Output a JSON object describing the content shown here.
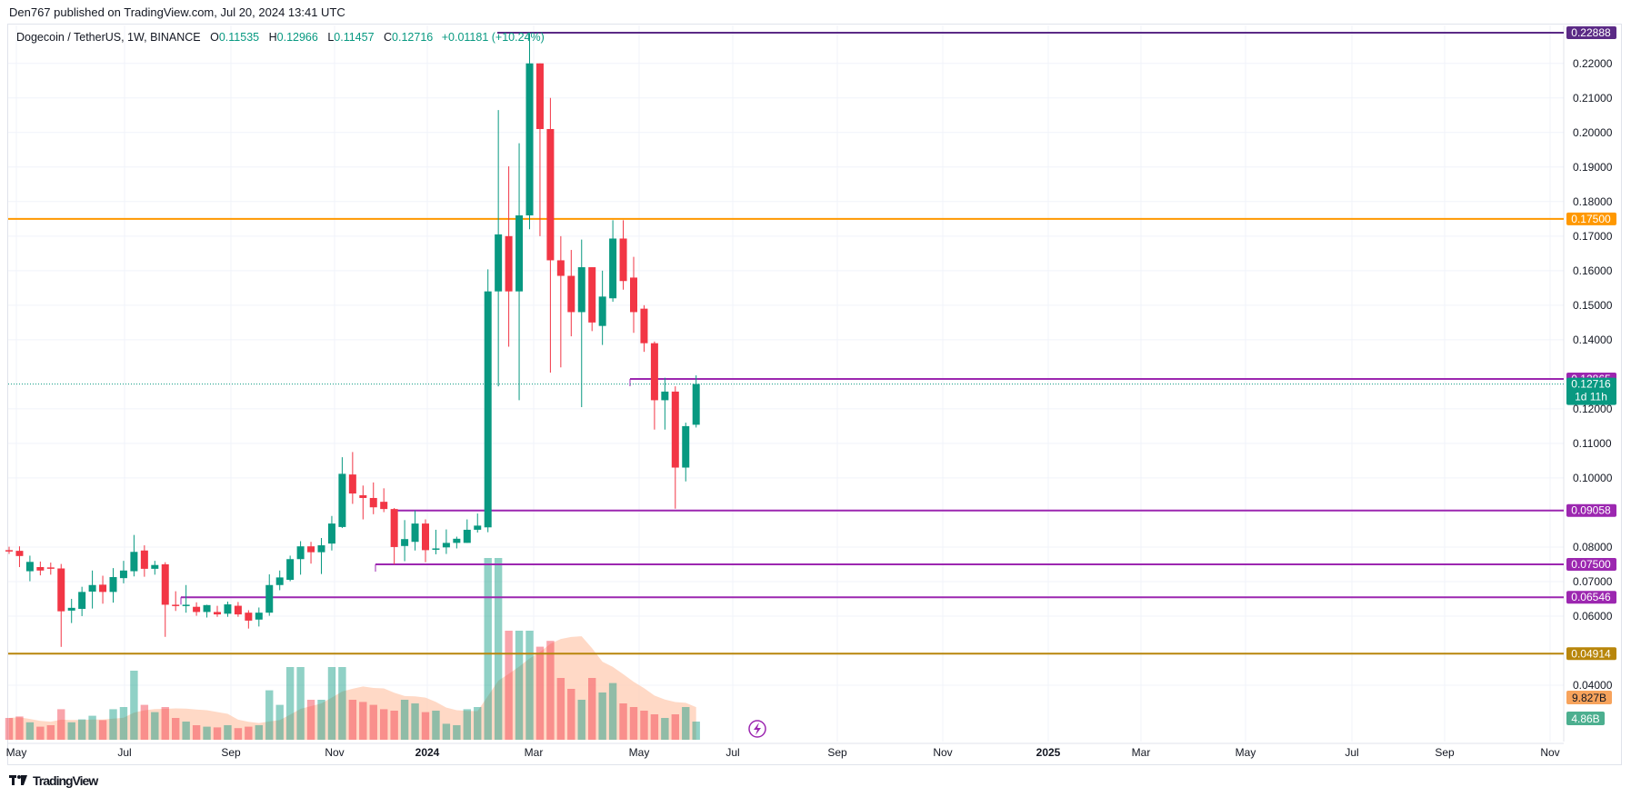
{
  "header": {
    "publisher": "Den767 published on TradingView.com, Jul 20, 2024 13:41 UTC"
  },
  "legend": {
    "symbol": "Dogecoin / TetherUS, 1W, BINANCE",
    "o_label": "O",
    "o": "0.11535",
    "h_label": "H",
    "h": "0.12966",
    "l_label": "L",
    "l": "0.11457",
    "c_label": "C",
    "c": "0.12716",
    "change": "+0.01181 (+10.24%)"
  },
  "footer": {
    "brand": "TradingView"
  },
  "colors": {
    "up": "#089981",
    "down": "#f23645",
    "level": "#9c27b0",
    "orange": "#ff9800",
    "gold": "#b8860b"
  },
  "chart_data": {
    "type": "candlestick",
    "timeframe": "1W",
    "x_ticks": [
      "May",
      "Jul",
      "Sep",
      "Nov",
      "2024",
      "Mar",
      "May",
      "Jul",
      "Sep",
      "Nov",
      "2025",
      "Mar",
      "May",
      "Jul",
      "Sep",
      "Nov"
    ],
    "y_ticks": [
      "0.22000",
      "0.21000",
      "0.20000",
      "0.19000",
      "0.18000",
      "0.17000",
      "0.16000",
      "0.15000",
      "0.14000",
      "0.12000",
      "0.11000",
      "0.10000",
      "0.08000",
      "0.07000",
      "0.06000",
      "0.04000"
    ],
    "y_range": [
      0.0325,
      0.2311
    ],
    "candles": [
      {
        "o": 0.0791,
        "h": 0.0801,
        "l": 0.078,
        "c": 0.079
      },
      {
        "o": 0.0789,
        "h": 0.0802,
        "l": 0.0742,
        "c": 0.0774
      },
      {
        "o": 0.073,
        "h": 0.0775,
        "l": 0.0701,
        "c": 0.0757
      },
      {
        "o": 0.0742,
        "h": 0.0758,
        "l": 0.0718,
        "c": 0.0732
      },
      {
        "o": 0.0741,
        "h": 0.0755,
        "l": 0.072,
        "c": 0.0738
      },
      {
        "o": 0.0738,
        "h": 0.0751,
        "l": 0.0511,
        "c": 0.0614
      },
      {
        "o": 0.0616,
        "h": 0.065,
        "l": 0.058,
        "c": 0.0624
      },
      {
        "o": 0.0621,
        "h": 0.0685,
        "l": 0.06,
        "c": 0.067
      },
      {
        "o": 0.0671,
        "h": 0.0732,
        "l": 0.0622,
        "c": 0.069
      },
      {
        "o": 0.0691,
        "h": 0.0717,
        "l": 0.0636,
        "c": 0.067
      },
      {
        "o": 0.067,
        "h": 0.0739,
        "l": 0.0639,
        "c": 0.0713
      },
      {
        "o": 0.071,
        "h": 0.076,
        "l": 0.0695,
        "c": 0.0732
      },
      {
        "o": 0.073,
        "h": 0.0835,
        "l": 0.0715,
        "c": 0.0786
      },
      {
        "o": 0.079,
        "h": 0.0805,
        "l": 0.0714,
        "c": 0.0737
      },
      {
        "o": 0.0737,
        "h": 0.076,
        "l": 0.072,
        "c": 0.0748
      },
      {
        "o": 0.075,
        "h": 0.0756,
        "l": 0.054,
        "c": 0.0633
      },
      {
        "o": 0.0633,
        "h": 0.0672,
        "l": 0.0615,
        "c": 0.0632
      },
      {
        "o": 0.0633,
        "h": 0.069,
        "l": 0.061,
        "c": 0.0633
      },
      {
        "o": 0.0627,
        "h": 0.064,
        "l": 0.0601,
        "c": 0.0612
      },
      {
        "o": 0.0612,
        "h": 0.0633,
        "l": 0.0596,
        "c": 0.0632
      },
      {
        "o": 0.0612,
        "h": 0.063,
        "l": 0.0598,
        "c": 0.0605
      },
      {
        "o": 0.0607,
        "h": 0.0642,
        "l": 0.0598,
        "c": 0.0634
      },
      {
        "o": 0.063,
        "h": 0.0641,
        "l": 0.0598,
        "c": 0.0605
      },
      {
        "o": 0.061,
        "h": 0.0617,
        "l": 0.0564,
        "c": 0.0587
      },
      {
        "o": 0.059,
        "h": 0.0625,
        "l": 0.057,
        "c": 0.061
      },
      {
        "o": 0.061,
        "h": 0.0721,
        "l": 0.0601,
        "c": 0.069
      },
      {
        "o": 0.069,
        "h": 0.0732,
        "l": 0.0675,
        "c": 0.0712
      },
      {
        "o": 0.0705,
        "h": 0.0775,
        "l": 0.0701,
        "c": 0.0765
      },
      {
        "o": 0.0765,
        "h": 0.0817,
        "l": 0.072,
        "c": 0.0802
      },
      {
        "o": 0.0802,
        "h": 0.0815,
        "l": 0.0752,
        "c": 0.0785
      },
      {
        "o": 0.0785,
        "h": 0.0826,
        "l": 0.0722,
        "c": 0.0805
      },
      {
        "o": 0.081,
        "h": 0.089,
        "l": 0.079,
        "c": 0.0868
      },
      {
        "o": 0.0858,
        "h": 0.106,
        "l": 0.0855,
        "c": 0.1012
      },
      {
        "o": 0.101,
        "h": 0.1075,
        "l": 0.0925,
        "c": 0.0955
      },
      {
        "o": 0.095,
        "h": 0.0978,
        "l": 0.088,
        "c": 0.0942
      },
      {
        "o": 0.0942,
        "h": 0.0987,
        "l": 0.0895,
        "c": 0.0915
      },
      {
        "o": 0.0931,
        "h": 0.097,
        "l": 0.0901,
        "c": 0.091
      },
      {
        "o": 0.091,
        "h": 0.0913,
        "l": 0.075,
        "c": 0.08
      },
      {
        "o": 0.0803,
        "h": 0.0878,
        "l": 0.0759,
        "c": 0.0823
      },
      {
        "o": 0.0815,
        "h": 0.0906,
        "l": 0.079,
        "c": 0.0868
      },
      {
        "o": 0.0868,
        "h": 0.088,
        "l": 0.0756,
        "c": 0.0791
      },
      {
        "o": 0.0793,
        "h": 0.085,
        "l": 0.0779,
        "c": 0.0796
      },
      {
        "o": 0.0799,
        "h": 0.0851,
        "l": 0.078,
        "c": 0.0812
      },
      {
        "o": 0.0812,
        "h": 0.083,
        "l": 0.0796,
        "c": 0.0824
      },
      {
        "o": 0.0812,
        "h": 0.088,
        "l": 0.0812,
        "c": 0.085
      },
      {
        "o": 0.085,
        "h": 0.0897,
        "l": 0.0842,
        "c": 0.0862
      },
      {
        "o": 0.0857,
        "h": 0.1604,
        "l": 0.0843,
        "c": 0.154
      },
      {
        "o": 0.154,
        "h": 0.2065,
        "l": 0.1265,
        "c": 0.1705
      },
      {
        "o": 0.17,
        "h": 0.1902,
        "l": 0.138,
        "c": 0.154
      },
      {
        "o": 0.154,
        "h": 0.1969,
        "l": 0.1225,
        "c": 0.176
      },
      {
        "o": 0.176,
        "h": 0.2289,
        "l": 0.172,
        "c": 0.22
      },
      {
        "o": 0.22,
        "h": 0.22,
        "l": 0.17,
        "c": 0.201
      },
      {
        "o": 0.201,
        "h": 0.21,
        "l": 0.1305,
        "c": 0.163
      },
      {
        "o": 0.163,
        "h": 0.17,
        "l": 0.132,
        "c": 0.1585
      },
      {
        "o": 0.1585,
        "h": 0.166,
        "l": 0.141,
        "c": 0.148
      },
      {
        "o": 0.148,
        "h": 0.169,
        "l": 0.1205,
        "c": 0.161
      },
      {
        "o": 0.161,
        "h": 0.161,
        "l": 0.1425,
        "c": 0.145
      },
      {
        "o": 0.144,
        "h": 0.16,
        "l": 0.1385,
        "c": 0.1525
      },
      {
        "o": 0.152,
        "h": 0.1746,
        "l": 0.151,
        "c": 0.1693
      },
      {
        "o": 0.1693,
        "h": 0.1746,
        "l": 0.1545,
        "c": 0.157
      },
      {
        "o": 0.158,
        "h": 0.164,
        "l": 0.142,
        "c": 0.148
      },
      {
        "o": 0.149,
        "h": 0.15,
        "l": 0.1365,
        "c": 0.139
      },
      {
        "o": 0.139,
        "h": 0.1395,
        "l": 0.114,
        "c": 0.1225
      },
      {
        "o": 0.1225,
        "h": 0.129,
        "l": 0.114,
        "c": 0.125
      },
      {
        "o": 0.125,
        "h": 0.1265,
        "l": 0.0911,
        "c": 0.103
      },
      {
        "o": 0.103,
        "h": 0.116,
        "l": 0.099,
        "c": 0.115
      },
      {
        "o": 0.1154,
        "h": 0.1297,
        "l": 0.1146,
        "c": 0.1272
      }
    ],
    "volume": [
      0.3,
      0.32,
      0.24,
      0.18,
      0.2,
      0.42,
      0.24,
      0.28,
      0.33,
      0.27,
      0.42,
      0.45,
      0.95,
      0.48,
      0.38,
      0.45,
      0.3,
      0.25,
      0.2,
      0.18,
      0.17,
      0.2,
      0.16,
      0.18,
      0.2,
      0.68,
      0.48,
      1.0,
      1.0,
      0.55,
      0.55,
      1.0,
      1.0,
      0.55,
      0.52,
      0.48,
      0.42,
      0.4,
      0.55,
      0.5,
      0.38,
      0.4,
      0.22,
      0.2,
      0.42,
      0.45,
      2.5,
      2.5,
      1.5,
      1.5,
      1.5,
      1.28,
      1.36,
      0.85,
      0.7,
      0.55,
      0.85,
      0.65,
      0.78,
      0.5,
      0.45,
      0.4,
      0.35,
      0.3,
      0.35,
      0.45,
      0.25
    ],
    "volume_labels": [
      "9.827B",
      "4.86B"
    ],
    "levels": [
      {
        "value": 0.22888,
        "label": "0.22888",
        "color": "#5b2a86"
      },
      {
        "value": 0.175,
        "label": "0.17500",
        "color": "#ff9800"
      },
      {
        "value": 0.12865,
        "label": "0.12865",
        "color": "#9c27b0"
      },
      {
        "value": 0.09058,
        "label": "0.09058",
        "color": "#9c27b0"
      },
      {
        "value": 0.075,
        "label": "0.07500",
        "color": "#9c27b0"
      },
      {
        "value": 0.06546,
        "label": "0.06546",
        "color": "#9c27b0"
      },
      {
        "value": 0.04914,
        "label": "0.04914",
        "color": "#b8860b"
      }
    ],
    "last_price": {
      "label": "0.12716",
      "countdown": "1d 11h"
    }
  }
}
